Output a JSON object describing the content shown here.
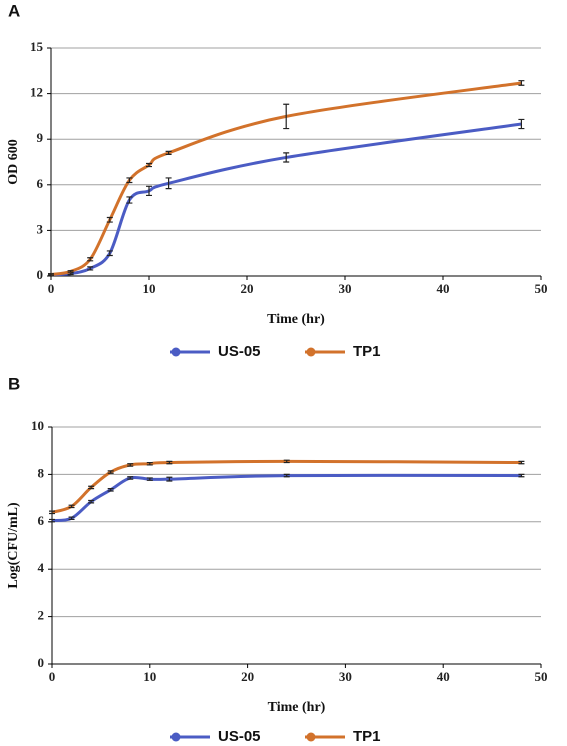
{
  "chart_data": [
    {
      "type": "line",
      "label": "A",
      "xlabel": "Time (hr)",
      "ylabel": "OD 600",
      "x": [
        0,
        2,
        4,
        6,
        8,
        10,
        12,
        24,
        48
      ],
      "xlim": [
        0,
        50
      ],
      "xticks": [
        0,
        10,
        20,
        30,
        40,
        50
      ],
      "ylim": [
        0,
        15
      ],
      "yticks": [
        0,
        3,
        6,
        9,
        12,
        15
      ],
      "grid": true,
      "series": [
        {
          "name": "US-05",
          "color": "#4b5cc4",
          "values": [
            0.1,
            0.15,
            0.5,
            1.5,
            5.0,
            5.6,
            6.1,
            7.8,
            10.0
          ],
          "errors": [
            0.05,
            0.05,
            0.1,
            0.15,
            0.2,
            0.3,
            0.35,
            0.3,
            0.3
          ]
        },
        {
          "name": "TP1",
          "color": "#d2722b",
          "values": [
            0.1,
            0.3,
            1.1,
            3.7,
            6.3,
            7.3,
            8.1,
            10.5,
            12.7
          ],
          "errors": [
            0.05,
            0.05,
            0.1,
            0.15,
            0.15,
            0.1,
            0.1,
            0.8,
            0.15
          ]
        }
      ]
    },
    {
      "type": "line",
      "label": "B",
      "xlabel": "Time (hr)",
      "ylabel": "Log(CFU/mL)",
      "x": [
        0,
        2,
        4,
        6,
        8,
        10,
        12,
        24,
        48
      ],
      "xlim": [
        0,
        50
      ],
      "xticks": [
        0,
        10,
        20,
        30,
        40,
        50
      ],
      "ylim": [
        0,
        10
      ],
      "yticks": [
        0,
        2,
        4,
        6,
        8,
        10
      ],
      "grid": true,
      "series": [
        {
          "name": "US-05",
          "color": "#4b5cc4",
          "values": [
            6.05,
            6.15,
            6.85,
            7.35,
            7.85,
            7.8,
            7.8,
            7.95,
            7.95
          ],
          "errors": [
            0.05,
            0.05,
            0.05,
            0.05,
            0.05,
            0.05,
            0.08,
            0.05,
            0.05
          ]
        },
        {
          "name": "TP1",
          "color": "#d2722b",
          "values": [
            6.4,
            6.65,
            7.45,
            8.1,
            8.4,
            8.45,
            8.5,
            8.55,
            8.5
          ],
          "errors": [
            0.05,
            0.05,
            0.05,
            0.05,
            0.05,
            0.05,
            0.05,
            0.05,
            0.05
          ]
        }
      ]
    }
  ]
}
